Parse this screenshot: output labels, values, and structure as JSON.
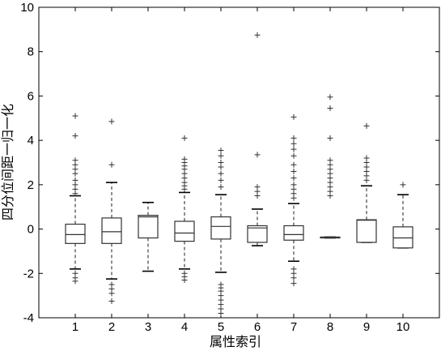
{
  "chart_data": {
    "type": "boxplot",
    "xlabel": "属性索引",
    "ylabel": "四分位间距一归一化",
    "ylim": [
      -4,
      10
    ],
    "yticks": [
      -4,
      -2,
      0,
      2,
      4,
      6,
      8,
      10
    ],
    "categories": [
      "1",
      "2",
      "3",
      "4",
      "5",
      "6",
      "7",
      "8",
      "9",
      "10"
    ],
    "boxes": [
      {
        "q1": -0.65,
        "median": -0.25,
        "q3": 0.22,
        "whisker_low": -1.8,
        "whisker_high": 1.5,
        "outliers": [
          -2.0,
          -2.2,
          -2.35,
          1.6,
          1.8,
          2.0,
          2.2,
          2.5,
          2.7,
          2.9,
          3.1,
          4.2,
          5.1
        ]
      },
      {
        "q1": -0.65,
        "median": -0.12,
        "q3": 0.5,
        "whisker_low": -2.25,
        "whisker_high": 2.1,
        "outliers": [
          -2.5,
          -2.7,
          -2.9,
          -3.25,
          2.9,
          4.85
        ]
      },
      {
        "q1": -0.4,
        "median": 0.55,
        "q3": 0.62,
        "whisker_low": -1.9,
        "whisker_high": 1.2,
        "outliers": []
      },
      {
        "q1": -0.55,
        "median": -0.18,
        "q3": 0.35,
        "whisker_low": -1.8,
        "whisker_high": 1.65,
        "outliers": [
          -2.0,
          -2.15,
          -2.3,
          1.8,
          1.95,
          2.1,
          2.3,
          2.5,
          2.7,
          2.85,
          3.0,
          3.15,
          4.1
        ]
      },
      {
        "q1": -0.45,
        "median": 0.12,
        "q3": 0.55,
        "whisker_low": -1.95,
        "whisker_high": 1.55,
        "outliers": [
          -2.5,
          -2.65,
          -2.8,
          -3.0,
          -3.2,
          -3.4,
          -3.6,
          -3.8,
          1.9,
          2.2,
          2.5,
          2.8,
          3.0,
          3.3,
          3.55
        ]
      },
      {
        "q1": -0.6,
        "median": 0.05,
        "q3": 0.15,
        "whisker_low": -0.75,
        "whisker_high": 0.9,
        "outliers": [
          1.5,
          1.7,
          1.9,
          3.35,
          8.75
        ]
      },
      {
        "q1": -0.5,
        "median": -0.25,
        "q3": 0.15,
        "whisker_low": -1.45,
        "whisker_high": 1.15,
        "outliers": [
          -1.8,
          -2.0,
          -2.2,
          -2.45,
          1.4,
          1.6,
          1.8,
          2.0,
          2.3,
          2.6,
          2.9,
          3.3,
          3.6,
          3.85,
          4.1,
          5.05
        ]
      },
      {
        "q1": -0.4,
        "median": -0.38,
        "q3": -0.36,
        "whisker_low": -0.4,
        "whisker_high": -0.36,
        "outliers": [
          1.5,
          1.7,
          1.9,
          2.1,
          2.3,
          2.5,
          2.7,
          2.9,
          3.1,
          4.1,
          5.45,
          5.95
        ]
      },
      {
        "q1": -0.6,
        "median": 0.4,
        "q3": 0.42,
        "whisker_low": -0.6,
        "whisker_high": 1.95,
        "outliers": [
          2.2,
          2.4,
          2.6,
          2.8,
          3.0,
          3.2,
          4.65
        ]
      },
      {
        "q1": -0.85,
        "median": -0.4,
        "q3": 0.1,
        "whisker_low": -0.85,
        "whisker_high": 1.55,
        "outliers": [
          2.0
        ]
      }
    ]
  }
}
